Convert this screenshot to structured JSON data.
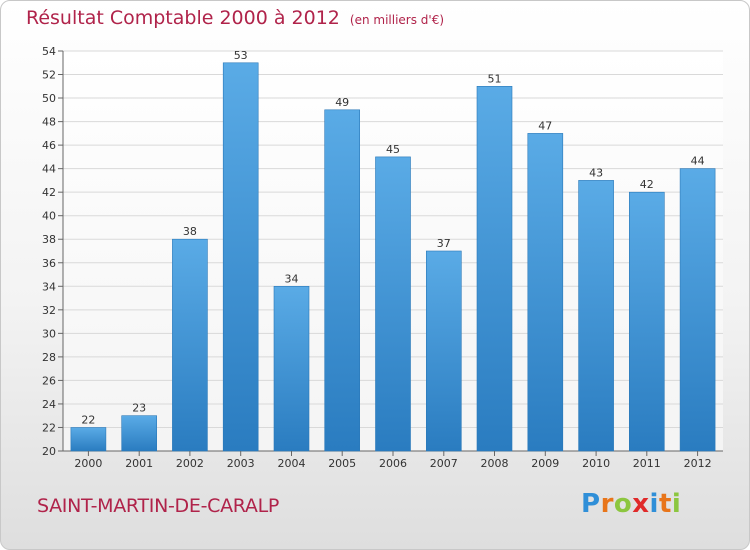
{
  "header": {
    "title": "Résultat Comptable 2000 à 2012",
    "subtitle": "(en milliers d'€)"
  },
  "footer": {
    "commune": "SAINT-MARTIN-DE-CARALP",
    "logo_letters": [
      "P",
      "r",
      "o",
      "x",
      "i",
      "t",
      "i"
    ],
    "logo_colors": [
      "#2f8fd8",
      "#e8751a",
      "#8cc63f",
      "#e02a2a",
      "#2f8fd8",
      "#e8751a",
      "#8cc63f"
    ]
  },
  "chart_data": {
    "type": "bar",
    "title": "Résultat Comptable 2000 à 2012",
    "subtitle": "(en milliers d'€)",
    "categories": [
      "2000",
      "2001",
      "2002",
      "2003",
      "2004",
      "2005",
      "2006",
      "2007",
      "2008",
      "2009",
      "2010",
      "2011",
      "2012"
    ],
    "values": [
      22,
      23,
      38,
      53,
      34,
      49,
      45,
      37,
      51,
      47,
      43,
      42,
      44
    ],
    "ylim": [
      20,
      54
    ],
    "yticks": [
      20,
      22,
      24,
      26,
      28,
      30,
      32,
      34,
      36,
      38,
      40,
      42,
      44,
      46,
      48,
      50,
      52,
      54
    ],
    "grid": true,
    "bar_color_top": "#5aabe6",
    "bar_color_bottom": "#2a7cc0",
    "xlabel": "",
    "ylabel": ""
  }
}
